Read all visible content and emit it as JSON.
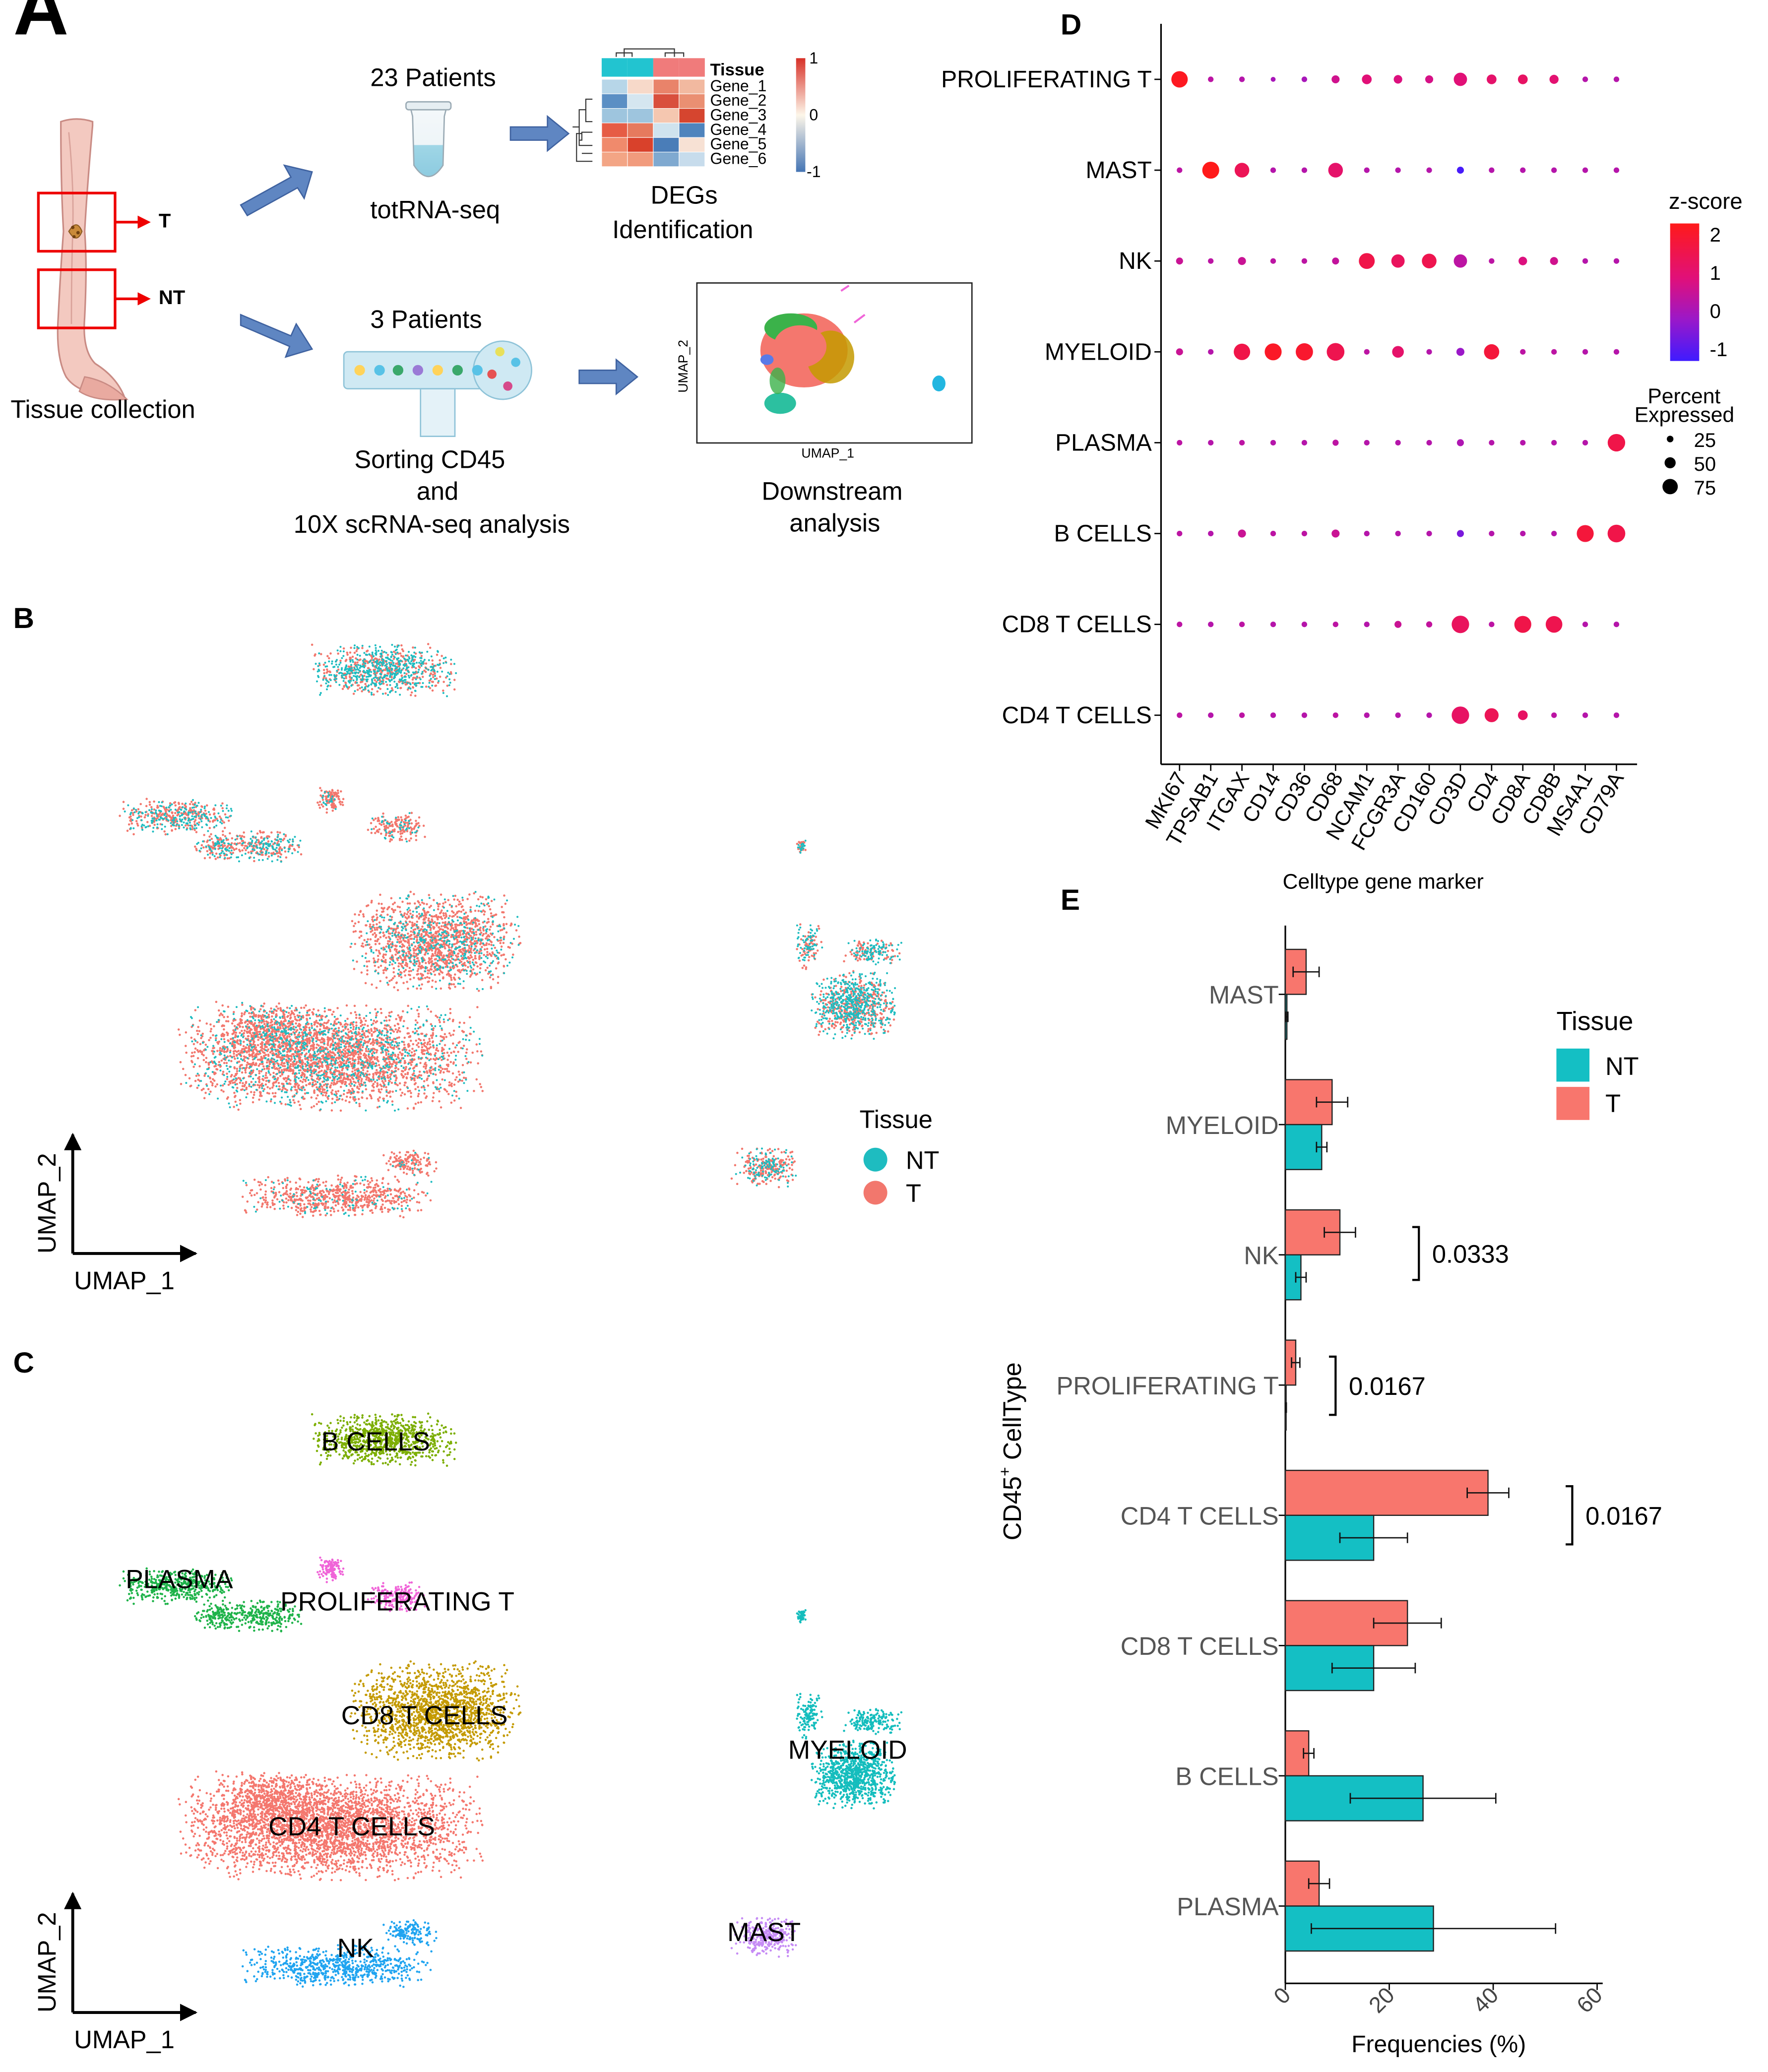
{
  "panels": {
    "A": {
      "letter": "A",
      "tissue_collection": "Tissue collection",
      "label_T": "T",
      "label_NT": "NT",
      "bulk_patients": "23 Patients",
      "bulk_method": "totRNA-seq",
      "bulk_result_line1": "DEGs",
      "bulk_result_line2": "Identification",
      "sc_patients": "3 Patients",
      "sc_method_line1": "Sorting CD45",
      "sc_method_line2": "and",
      "sc_method_line3": "10X scRNA-seq analysis",
      "sc_result_line1": "Downstream",
      "sc_result_line2": "analysis",
      "heatmap": {
        "header": "Tissue",
        "genes": [
          "Gene_1",
          "Gene_2",
          "Gene_3",
          "Gene_4",
          "Gene_5",
          "Gene_6"
        ],
        "scale_top": "1",
        "scale_mid": "0",
        "scale_bottom": "-1",
        "cells": [
          [
            "#b7d6e8",
            "#f7d9c9",
            "#e9836a",
            "#f2b9a0"
          ],
          [
            "#5b8fc4",
            "#d5e6f0",
            "#d94f3d",
            "#ea8f72"
          ],
          [
            "#9ec5de",
            "#9ec5de",
            "#f5c7b0",
            "#d6452f"
          ],
          [
            "#e65c45",
            "#e67a5e",
            "#cfe3ee",
            "#4f84bd"
          ],
          [
            "#f08a6c",
            "#d9412b",
            "#4a7db8",
            "#f7e1d4"
          ],
          [
            "#f3a585",
            "#f19b7d",
            "#7fa9d0",
            "#c7dcec"
          ]
        ],
        "header_colors": [
          "#22c4d0",
          "#22c4d0",
          "#f07b7b",
          "#f07b7b"
        ]
      },
      "mini_umap_xlabel": "UMAP_1",
      "mini_umap_ylabel": "UMAP_2"
    },
    "B": {
      "letter": "B",
      "legend_title": "Tissue",
      "legend": [
        {
          "label": "NT",
          "color": "#1ebcc0"
        },
        {
          "label": "T",
          "color": "#f2776d"
        }
      ],
      "xlabel": "UMAP_1",
      "ylabel": "UMAP_2"
    },
    "C": {
      "letter": "C",
      "xlabel": "UMAP_1",
      "ylabel": "UMAP_2",
      "clusters": [
        {
          "label": "B CELLS",
          "color": "#7cae00"
        },
        {
          "label": "PLASMA",
          "color": "#1fb34a"
        },
        {
          "label": "PROLIFERATING T",
          "color": "#f064d8"
        },
        {
          "label": "CD8 T CELLS",
          "color": "#c49a00"
        },
        {
          "label": "MYELOID",
          "color": "#14bdbd"
        },
        {
          "label": "CD4 T CELLS",
          "color": "#f4776e"
        },
        {
          "label": "NK",
          "color": "#20a4f0"
        },
        {
          "label": "MAST",
          "color": "#c68cf5"
        }
      ]
    },
    "D": {
      "letter": "D",
      "xlabel": "Celltype gene marker",
      "colorbar_title": "z-score",
      "colorbar_ticks": [
        "2",
        "1",
        "0",
        "-1"
      ],
      "size_title_line1": "Percent",
      "size_title_line2": "Expressed",
      "size_legend": [
        "25",
        "50",
        "75"
      ]
    },
    "E": {
      "letter": "E",
      "ylabel": "CD45",
      "ylabel_sup": "+",
      "ylabel_rest": " CellType",
      "legend_title": "Tissue",
      "significance": [
        {
          "row": "NK",
          "p": "0.0333"
        },
        {
          "row": "PROLIFERATING T",
          "p": "0.0167"
        },
        {
          "row": "CD4 T CELLS",
          "p": "0.0167"
        }
      ]
    }
  },
  "chart_data": [
    {
      "type": "scatter",
      "panel": "D",
      "subtype": "dotplot",
      "x_genes": [
        "MKI67",
        "TPSAB1",
        "ITGAX",
        "CD14",
        "CD36",
        "CD68",
        "NCAM1",
        "FCGR3A",
        "CD160",
        "CD3D",
        "CD4",
        "CD8A",
        "CD8B",
        "MS4A1",
        "CD79A"
      ],
      "y_celltypes": [
        "PROLIFERATING T",
        "MAST",
        "NK",
        "MYELOID",
        "PLASMA",
        "B CELLS",
        "CD8 T CELLS",
        "CD4 T CELLS"
      ],
      "z_range": [
        -1.3,
        2.3
      ],
      "dots": [
        [
          [
            60,
            2.2
          ],
          [
            2,
            0.3
          ],
          [
            2,
            0.2
          ],
          [
            1,
            0
          ],
          [
            2,
            0
          ],
          [
            8,
            0.6
          ],
          [
            15,
            0.9
          ],
          [
            10,
            0.8
          ],
          [
            8,
            0.7
          ],
          [
            35,
            0.9
          ],
          [
            15,
            1.1
          ],
          [
            15,
            1.2
          ],
          [
            12,
            1.0
          ],
          [
            2,
            0.2
          ],
          [
            2,
            0.2
          ]
        ],
        [
          [
            2,
            0.3
          ],
          [
            65,
            2.3
          ],
          [
            45,
            1.4
          ],
          [
            2,
            0.2
          ],
          [
            2,
            0.2
          ],
          [
            45,
            1.1
          ],
          [
            2,
            0.2
          ],
          [
            2,
            0.2
          ],
          [
            2,
            0.2
          ],
          [
            5,
            -1.2
          ],
          [
            2,
            0.2
          ],
          [
            2,
            0.2
          ],
          [
            2,
            0.2
          ],
          [
            2,
            0.2
          ],
          [
            2,
            0.2
          ]
        ],
        [
          [
            5,
            0.5
          ],
          [
            2,
            0.3
          ],
          [
            8,
            0.5
          ],
          [
            2,
            0.3
          ],
          [
            2,
            0.3
          ],
          [
            5,
            0.4
          ],
          [
            55,
            1.6
          ],
          [
            35,
            1.3
          ],
          [
            45,
            1.5
          ],
          [
            35,
            0.3
          ],
          [
            2,
            0.3
          ],
          [
            10,
            0.8
          ],
          [
            8,
            0.6
          ],
          [
            2,
            0.2
          ],
          [
            2,
            0.2
          ]
        ],
        [
          [
            5,
            0.5
          ],
          [
            2,
            0.2
          ],
          [
            60,
            1.6
          ],
          [
            65,
            2.1
          ],
          [
            68,
            2.0
          ],
          [
            72,
            1.5
          ],
          [
            2,
            0.3
          ],
          [
            25,
            1.1
          ],
          [
            2,
            0.2
          ],
          [
            8,
            -0.2
          ],
          [
            50,
            1.8
          ],
          [
            2,
            0.3
          ],
          [
            2,
            0.3
          ],
          [
            2,
            0.2
          ],
          [
            2,
            0.2
          ]
        ],
        [
          [
            2,
            0.3
          ],
          [
            2,
            0.2
          ],
          [
            2,
            0.3
          ],
          [
            2,
            0.2
          ],
          [
            2,
            0.2
          ],
          [
            3,
            0.3
          ],
          [
            2,
            0.2
          ],
          [
            2,
            0.2
          ],
          [
            2,
            0.2
          ],
          [
            5,
            0.1
          ],
          [
            2,
            0.2
          ],
          [
            2,
            0.2
          ],
          [
            2,
            0.2
          ],
          [
            2,
            0.2
          ],
          [
            70,
            1.6
          ]
        ],
        [
          [
            2,
            0.3
          ],
          [
            2,
            0.2
          ],
          [
            8,
            0.5
          ],
          [
            2,
            0.3
          ],
          [
            2,
            0.3
          ],
          [
            8,
            0.5
          ],
          [
            2,
            0.2
          ],
          [
            2,
            0.2
          ],
          [
            2,
            0.2
          ],
          [
            5,
            -0.6
          ],
          [
            2,
            0.2
          ],
          [
            2,
            0.2
          ],
          [
            2,
            0.2
          ],
          [
            65,
            1.8
          ],
          [
            72,
            1.6
          ]
        ],
        [
          [
            2,
            0.3
          ],
          [
            2,
            0.2
          ],
          [
            2,
            0.3
          ],
          [
            2,
            0.2
          ],
          [
            2,
            0.2
          ],
          [
            2,
            0.3
          ],
          [
            2,
            0.2
          ],
          [
            5,
            0.5
          ],
          [
            3,
            0.4
          ],
          [
            70,
            1.3
          ],
          [
            2,
            0.3
          ],
          [
            65,
            1.6
          ],
          [
            62,
            1.5
          ],
          [
            2,
            0.2
          ],
          [
            2,
            0.2
          ]
        ],
        [
          [
            2,
            0.3
          ],
          [
            2,
            0.2
          ],
          [
            2,
            0.3
          ],
          [
            2,
            0.2
          ],
          [
            2,
            0.2
          ],
          [
            2,
            0.3
          ],
          [
            2,
            0.2
          ],
          [
            2,
            0.2
          ],
          [
            2,
            0.2
          ],
          [
            70,
            1.2
          ],
          [
            40,
            1.4
          ],
          [
            15,
            1.2
          ],
          [
            2,
            0.3
          ],
          [
            2,
            0.2
          ],
          [
            2,
            0.2
          ]
        ]
      ]
    },
    {
      "type": "bar",
      "panel": "E",
      "orientation": "horizontal",
      "categories": [
        "MAST",
        "MYELOID",
        "NK",
        "PROLIFERATING T",
        "CD4 T CELLS",
        "CD8 T CELLS",
        "B CELLS",
        "PLASMA"
      ],
      "series": [
        {
          "name": "T",
          "color": "#f8766d",
          "values": [
            4,
            9,
            10.5,
            2,
            39,
            23.5,
            4.5,
            6.5
          ],
          "err": [
            2.5,
            3,
            3,
            0.8,
            4,
            6.5,
            1,
            2
          ]
        },
        {
          "name": "NT",
          "color": "#14bfc4",
          "values": [
            0.3,
            7,
            3,
            0.1,
            17,
            17,
            26.5,
            28.5
          ],
          "err": [
            0.2,
            1,
            1,
            0.1,
            6.5,
            8,
            14,
            23.5
          ]
        }
      ],
      "xlabel": "Frequencies (%)",
      "xlim": [
        0,
        60
      ],
      "xticks": [
        "0",
        "20",
        "40",
        "60"
      ],
      "ylabel": "CD45+ CellType"
    }
  ]
}
